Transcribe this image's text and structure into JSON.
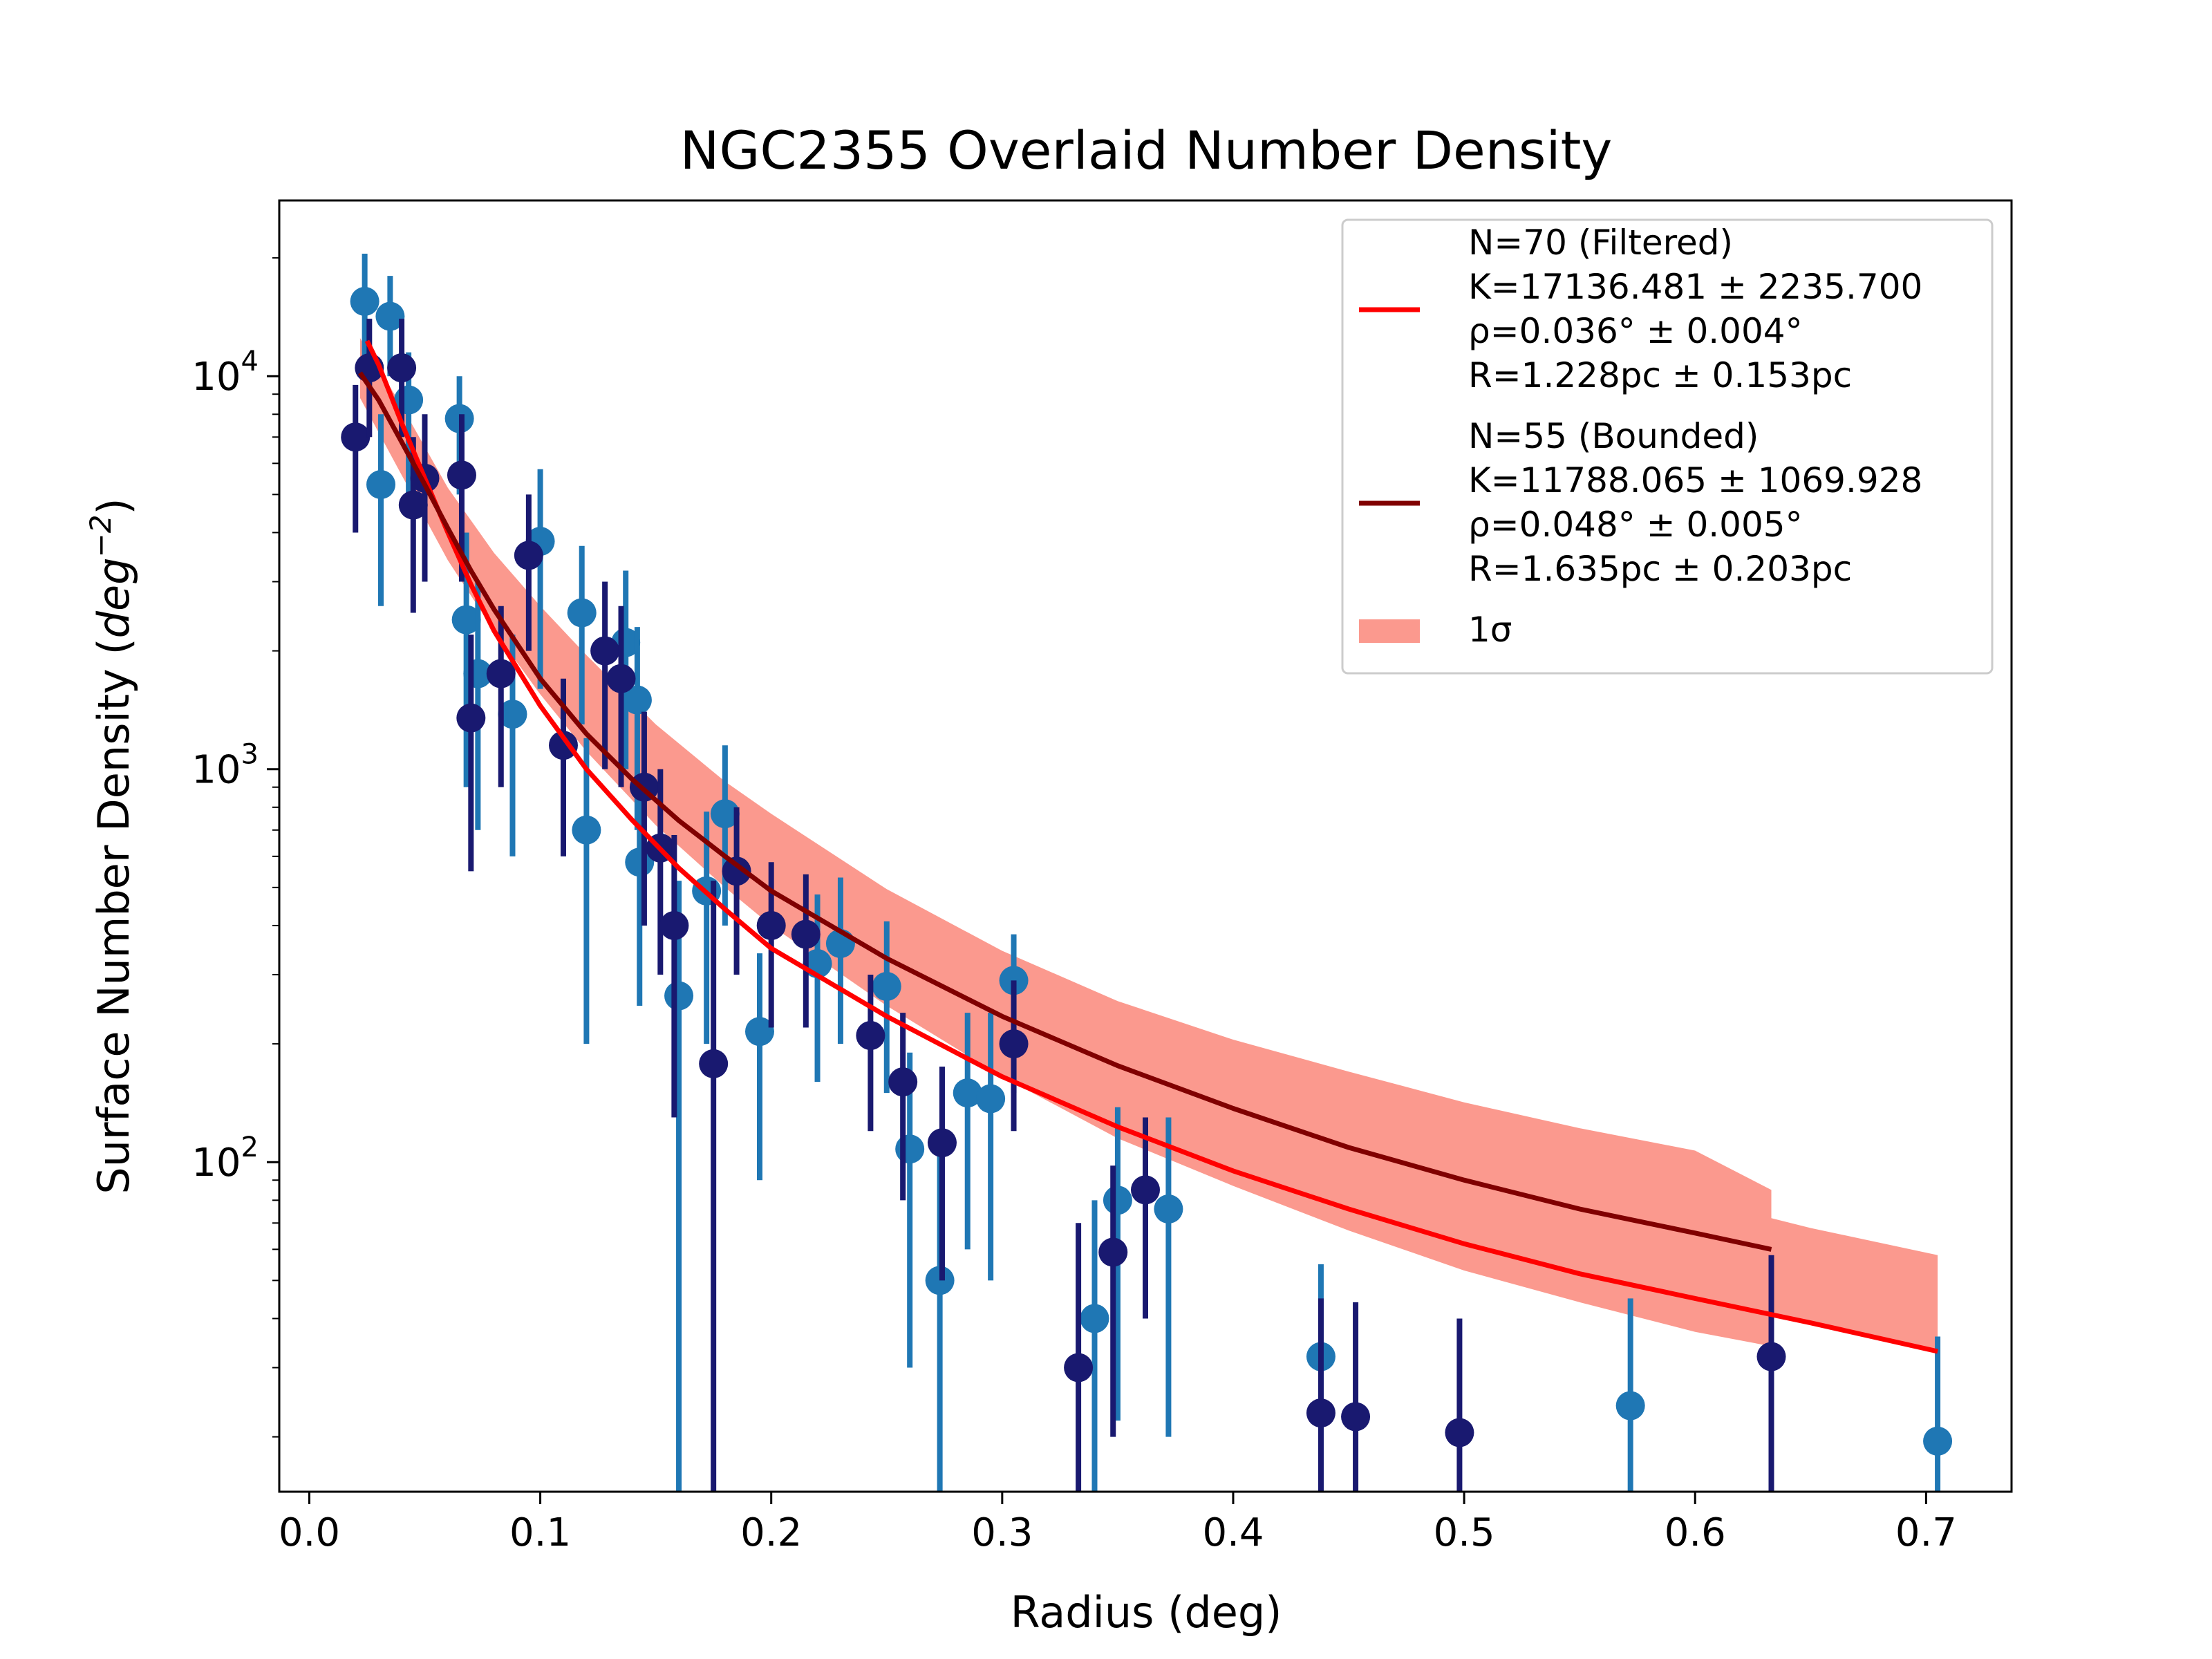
{
  "chart_data": {
    "type": "scatter",
    "title": "NGC2355 Overlaid Number Density",
    "xlabel": "Radius (deg)",
    "ylabel": "Surface Number Density",
    "ylabel_unit": "deg",
    "ylabel_exp": "−2",
    "yscale": "log",
    "xlim": [
      -0.013,
      0.737
    ],
    "ylim": [
      14.5,
      28000
    ],
    "grid": false,
    "legend_position": "top-right",
    "x_ticks": [
      {
        "value": 0.0,
        "label": "0.0"
      },
      {
        "value": 0.1,
        "label": "0.1"
      },
      {
        "value": 0.2,
        "label": "0.2"
      },
      {
        "value": 0.3,
        "label": "0.3"
      },
      {
        "value": 0.4,
        "label": "0.4"
      },
      {
        "value": 0.5,
        "label": "0.5"
      },
      {
        "value": 0.6,
        "label": "0.6"
      },
      {
        "value": 0.7,
        "label": "0.7"
      }
    ],
    "y_ticks": [
      {
        "value": 100,
        "base": "10",
        "exp": "2"
      },
      {
        "value": 1000,
        "base": "10",
        "exp": "3"
      },
      {
        "value": 10000,
        "base": "10",
        "exp": "4"
      }
    ],
    "legend": {
      "entries": [
        {
          "kind": "line",
          "color": "#ff0000",
          "lines": [
            "N=70 (Filtered)",
            "K=17136.481 ± 2235.700",
            "ρ=0.036° ± 0.004°",
            "R=1.228pc ± 0.153pc"
          ]
        },
        {
          "kind": "line",
          "color": "#800000",
          "lines": [
            "N=55 (Bounded)",
            "K=11788.065 ± 1069.928",
            "ρ=0.048° ± 0.005°",
            "R=1.635pc ± 0.203pc"
          ]
        },
        {
          "kind": "patch",
          "color": "#fa8072",
          "lines": [
            "1σ"
          ]
        }
      ]
    },
    "bands": [
      {
        "name": "1σ",
        "color": "#fa8072",
        "x": [
          0.022,
          0.04,
          0.06,
          0.08,
          0.1,
          0.12,
          0.15,
          0.18,
          0.2,
          0.25,
          0.3,
          0.35,
          0.4,
          0.45,
          0.5,
          0.55,
          0.6,
          0.633
        ],
        "y_low": [
          8800,
          5600,
          3400,
          2250,
          1550,
          1110,
          720,
          500,
          400,
          250,
          165,
          115,
          87,
          67,
          53,
          44,
          37,
          34
        ],
        "y_high": [
          12500,
          8400,
          5200,
          3550,
          2600,
          1950,
          1300,
          930,
          770,
          495,
          345,
          257,
          205,
          170,
          142,
          122,
          107,
          85
        ]
      },
      {
        "name": "1σ",
        "color": "#fa8072",
        "x": [
          0.633,
          0.65,
          0.705
        ],
        "y_low": [
          41,
          39,
          33
        ],
        "y_high": [
          72,
          68,
          58
        ]
      }
    ],
    "series": [
      {
        "name": "N=70 (Filtered)",
        "kind": "line",
        "color": "#ff0000",
        "x": [
          0.025,
          0.03,
          0.04,
          0.05,
          0.06,
          0.07,
          0.08,
          0.1,
          0.12,
          0.14,
          0.16,
          0.18,
          0.2,
          0.25,
          0.3,
          0.35,
          0.4,
          0.45,
          0.5,
          0.55,
          0.6,
          0.65,
          0.705
        ],
        "y": [
          12300,
          10700,
          7600,
          5500,
          4000,
          2950,
          2250,
          1450,
          1000,
          740,
          560,
          440,
          350,
          235,
          165,
          123,
          95,
          76,
          62,
          52,
          45,
          39,
          33
        ]
      },
      {
        "name": "N=55 (Bounded)",
        "kind": "line",
        "color": "#800000",
        "x": [
          0.022,
          0.03,
          0.04,
          0.05,
          0.06,
          0.07,
          0.08,
          0.1,
          0.12,
          0.14,
          0.16,
          0.18,
          0.2,
          0.25,
          0.3,
          0.35,
          0.4,
          0.45,
          0.5,
          0.55,
          0.6,
          0.633
        ],
        "y": [
          10200,
          8700,
          6800,
          5300,
          4100,
          3200,
          2550,
          1700,
          1230,
          940,
          740,
          600,
          490,
          330,
          235,
          176,
          137,
          109,
          90,
          76,
          66,
          60
        ]
      },
      {
        "name": "filtered-points",
        "kind": "errorbar",
        "color": "#1f77b4",
        "points": [
          {
            "x": 0.024,
            "y": 15500,
            "lo": 11000,
            "hi": 20500
          },
          {
            "x": 0.035,
            "y": 14200,
            "lo": 10000,
            "hi": 18000
          },
          {
            "x": 0.031,
            "y": 5300,
            "lo": 2600,
            "hi": 8000
          },
          {
            "x": 0.043,
            "y": 8700,
            "lo": 5000,
            "hi": 11500
          },
          {
            "x": 0.065,
            "y": 7800,
            "lo": 5000,
            "hi": 10000
          },
          {
            "x": 0.068,
            "y": 2400,
            "lo": 900,
            "hi": 4000
          },
          {
            "x": 0.073,
            "y": 1750,
            "lo": 700,
            "hi": 3000
          },
          {
            "x": 0.088,
            "y": 1380,
            "lo": 600,
            "hi": 2200
          },
          {
            "x": 0.1,
            "y": 3800,
            "lo": 1600,
            "hi": 5800
          },
          {
            "x": 0.118,
            "y": 2500,
            "lo": 1300,
            "hi": 3700
          },
          {
            "x": 0.12,
            "y": 700,
            "lo": 200,
            "hi": 1200
          },
          {
            "x": 0.137,
            "y": 2100,
            "lo": 1000,
            "hi": 3200
          },
          {
            "x": 0.142,
            "y": 1500,
            "lo": 700,
            "hi": 2300
          },
          {
            "x": 0.143,
            "y": 580,
            "lo": 250,
            "hi": 900
          },
          {
            "x": 0.16,
            "y": 265,
            "lo": 14.5,
            "hi": 520
          },
          {
            "x": 0.172,
            "y": 490,
            "lo": 200,
            "hi": 780
          },
          {
            "x": 0.18,
            "y": 770,
            "lo": 400,
            "hi": 1150
          },
          {
            "x": 0.195,
            "y": 215,
            "lo": 90,
            "hi": 340
          },
          {
            "x": 0.22,
            "y": 320,
            "lo": 160,
            "hi": 480
          },
          {
            "x": 0.23,
            "y": 360,
            "lo": 200,
            "hi": 530
          },
          {
            "x": 0.25,
            "y": 280,
            "lo": 150,
            "hi": 410
          },
          {
            "x": 0.26,
            "y": 108,
            "lo": 30,
            "hi": 190
          },
          {
            "x": 0.273,
            "y": 50,
            "lo": 14.5,
            "hi": 110
          },
          {
            "x": 0.285,
            "y": 150,
            "lo": 60,
            "hi": 240
          },
          {
            "x": 0.295,
            "y": 145,
            "lo": 50,
            "hi": 240
          },
          {
            "x": 0.305,
            "y": 290,
            "lo": 150,
            "hi": 380
          },
          {
            "x": 0.34,
            "y": 40,
            "lo": 14.5,
            "hi": 80
          },
          {
            "x": 0.35,
            "y": 80,
            "lo": 22,
            "hi": 138
          },
          {
            "x": 0.372,
            "y": 76,
            "lo": 20,
            "hi": 130
          },
          {
            "x": 0.438,
            "y": 32,
            "lo": 14.5,
            "hi": 55
          },
          {
            "x": 0.572,
            "y": 24,
            "lo": 14.5,
            "hi": 45
          },
          {
            "x": 0.705,
            "y": 19.5,
            "lo": 14.5,
            "hi": 36
          }
        ]
      },
      {
        "name": "bounded-points",
        "kind": "errorbar",
        "color": "#191970",
        "points": [
          {
            "x": 0.02,
            "y": 7000,
            "lo": 4000,
            "hi": 9500
          },
          {
            "x": 0.026,
            "y": 10500,
            "lo": 7000,
            "hi": 14000
          },
          {
            "x": 0.04,
            "y": 10500,
            "lo": 7000,
            "hi": 14000
          },
          {
            "x": 0.045,
            "y": 4700,
            "lo": 2500,
            "hi": 7000
          },
          {
            "x": 0.05,
            "y": 5500,
            "lo": 3000,
            "hi": 8000
          },
          {
            "x": 0.066,
            "y": 5600,
            "lo": 3000,
            "hi": 8000
          },
          {
            "x": 0.07,
            "y": 1350,
            "lo": 550,
            "hi": 2200
          },
          {
            "x": 0.083,
            "y": 1750,
            "lo": 900,
            "hi": 2600
          },
          {
            "x": 0.095,
            "y": 3500,
            "lo": 2000,
            "hi": 5000
          },
          {
            "x": 0.11,
            "y": 1150,
            "lo": 600,
            "hi": 1700
          },
          {
            "x": 0.128,
            "y": 2000,
            "lo": 1000,
            "hi": 3000
          },
          {
            "x": 0.135,
            "y": 1700,
            "lo": 900,
            "hi": 2600
          },
          {
            "x": 0.145,
            "y": 900,
            "lo": 400,
            "hi": 1400
          },
          {
            "x": 0.152,
            "y": 630,
            "lo": 300,
            "hi": 1000
          },
          {
            "x": 0.158,
            "y": 400,
            "lo": 130,
            "hi": 680
          },
          {
            "x": 0.175,
            "y": 178,
            "lo": 14.5,
            "hi": 520
          },
          {
            "x": 0.185,
            "y": 550,
            "lo": 300,
            "hi": 800
          },
          {
            "x": 0.2,
            "y": 400,
            "lo": 220,
            "hi": 580
          },
          {
            "x": 0.215,
            "y": 380,
            "lo": 220,
            "hi": 540
          },
          {
            "x": 0.243,
            "y": 210,
            "lo": 120,
            "hi": 300
          },
          {
            "x": 0.257,
            "y": 160,
            "lo": 80,
            "hi": 240
          },
          {
            "x": 0.274,
            "y": 112,
            "lo": 50,
            "hi": 175
          },
          {
            "x": 0.305,
            "y": 200,
            "lo": 120,
            "hi": 290
          },
          {
            "x": 0.333,
            "y": 30,
            "lo": 14.5,
            "hi": 70
          },
          {
            "x": 0.348,
            "y": 59,
            "lo": 20,
            "hi": 98
          },
          {
            "x": 0.362,
            "y": 85,
            "lo": 40,
            "hi": 130
          },
          {
            "x": 0.438,
            "y": 23,
            "lo": 14.5,
            "hi": 45
          },
          {
            "x": 0.453,
            "y": 22.5,
            "lo": 14.5,
            "hi": 44
          },
          {
            "x": 0.498,
            "y": 20.5,
            "lo": 14.5,
            "hi": 40
          },
          {
            "x": 0.633,
            "y": 32,
            "lo": 14.5,
            "hi": 58
          }
        ]
      }
    ]
  }
}
